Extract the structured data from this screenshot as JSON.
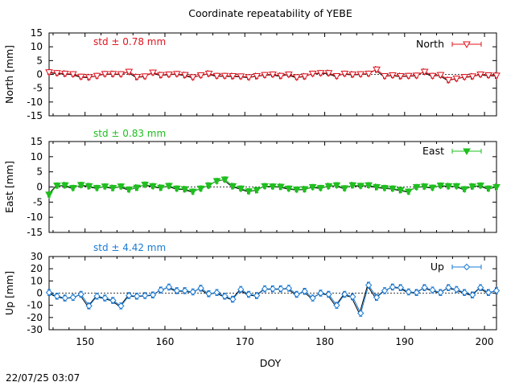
{
  "title": "Coordinate repeatability of YEBE",
  "timestamp": "22/07/25 03:07",
  "colors": {
    "north": "#e0141e",
    "east": "#1fbf1f",
    "up": "#1a7ad4",
    "black": "#000000"
  },
  "chart_data": [
    {
      "type": "line",
      "panel": "north",
      "ylabel": "North [mm]",
      "ylim": [
        -15,
        15
      ],
      "yticks": [
        "15",
        "10",
        "5",
        "0",
        "-5",
        "-10",
        "-15"
      ],
      "xlim": [
        145.5,
        201.5
      ],
      "xticks": [],
      "grid": false,
      "legend": "North",
      "legend_placement": "top-right",
      "std_label": "std ± 0.78 mm",
      "marker": "open-triangle-down",
      "series": [
        {
          "x": [
            145.5,
            146.5,
            147.5,
            148.5,
            149.5,
            150.5,
            151.5,
            152.5,
            153.5,
            154.5,
            155.5,
            156.5,
            157.5,
            158.5,
            159.5,
            160.5,
            161.5,
            162.5,
            163.5,
            164.5,
            165.5,
            166.5,
            167.5,
            168.5,
            169.5,
            170.5,
            171.5,
            172.5,
            173.5,
            174.5,
            175.5,
            176.5,
            177.5,
            178.5,
            179.5,
            180.5,
            181.5,
            182.5,
            183.5,
            184.5,
            185.5,
            186.5,
            187.5,
            188.5,
            189.5,
            190.5,
            191.5,
            192.5,
            193.5,
            194.5,
            195.5,
            196.5,
            197.5,
            198.5,
            199.5,
            200.5,
            201.5
          ],
          "y": [
            0.8,
            0.5,
            0.3,
            0.1,
            -0.8,
            -1.0,
            -0.5,
            0.2,
            0.2,
            0.1,
            1.0,
            -0.9,
            -0.7,
            0.7,
            -0.2,
            0.0,
            0.2,
            -0.2,
            -1.0,
            -0.3,
            0.3,
            -0.5,
            -0.5,
            -0.6,
            -0.7,
            -1.0,
            -0.6,
            -0.2,
            0.0,
            -0.5,
            0.0,
            -1.0,
            -0.7,
            0.3,
            0.5,
            0.5,
            -0.6,
            0.3,
            0.0,
            0.1,
            0.3,
            1.8,
            -0.6,
            -0.3,
            -0.6,
            -0.5,
            -0.4,
            1.0,
            -0.5,
            -0.2,
            -2.0,
            -1.5,
            -0.9,
            -0.7,
            0.0,
            -0.3,
            -0.4
          ]
        }
      ]
    },
    {
      "type": "line",
      "panel": "east",
      "ylabel": "East [mm]",
      "ylim": [
        -15,
        15
      ],
      "yticks": [
        "15",
        "10",
        "5",
        "0",
        "-5",
        "-10",
        "-15"
      ],
      "xlim": [
        145.5,
        201.5
      ],
      "xticks": [],
      "grid": false,
      "legend": "East",
      "legend_placement": "top-right",
      "std_label": "std ± 0.83 mm",
      "marker": "filled-triangle-down",
      "series": [
        {
          "x": [
            145.5,
            146.5,
            147.5,
            148.5,
            149.5,
            150.5,
            151.5,
            152.5,
            153.5,
            154.5,
            155.5,
            156.5,
            157.5,
            158.5,
            159.5,
            160.5,
            161.5,
            162.5,
            163.5,
            164.5,
            165.5,
            166.5,
            167.5,
            168.5,
            169.5,
            170.5,
            171.5,
            172.5,
            173.5,
            174.5,
            175.5,
            176.5,
            177.5,
            178.5,
            179.5,
            180.5,
            181.5,
            182.5,
            183.5,
            184.5,
            185.5,
            186.5,
            187.5,
            188.5,
            189.5,
            190.5,
            191.5,
            192.5,
            193.5,
            194.5,
            195.5,
            196.5,
            197.5,
            198.5,
            199.5,
            200.5,
            201.5
          ],
          "y": [
            -2.5,
            0.5,
            0.6,
            -0.3,
            0.7,
            0.3,
            -0.3,
            0.2,
            -0.3,
            0.2,
            -0.8,
            -0.2,
            0.8,
            0.3,
            -0.2,
            0.4,
            -0.5,
            -0.7,
            -1.5,
            -0.5,
            0.5,
            2.0,
            2.5,
            0.3,
            -0.5,
            -1.4,
            -1.0,
            0.3,
            0.2,
            0.1,
            -0.5,
            -0.8,
            -0.7,
            0.0,
            -0.3,
            0.3,
            0.6,
            -0.4,
            0.6,
            0.4,
            0.6,
            0.0,
            -0.3,
            -0.5,
            -1.0,
            -1.5,
            0.0,
            0.2,
            -0.2,
            0.5,
            0.3,
            0.3,
            -0.7,
            0.2,
            0.5,
            -0.5,
            0.0
          ]
        }
      ]
    },
    {
      "type": "line",
      "panel": "up",
      "ylabel": "Up [mm]",
      "xlabel": "DOY",
      "ylim": [
        -30,
        30
      ],
      "yticks": [
        "30",
        "20",
        "10",
        "0",
        "-10",
        "-20",
        "-30"
      ],
      "xlim": [
        145.5,
        201.5
      ],
      "xticks": [
        150,
        160,
        170,
        180,
        190,
        200
      ],
      "xtick_labels": [
        "150",
        "160",
        "170",
        "180",
        "190",
        "200"
      ],
      "grid": false,
      "legend": "Up",
      "legend_placement": "top-right",
      "std_label": "std ± 4.42 mm",
      "marker": "open-diamond",
      "series": [
        {
          "x": [
            145.5,
            146.5,
            147.5,
            148.5,
            149.5,
            150.5,
            151.5,
            152.5,
            153.5,
            154.5,
            155.5,
            156.5,
            157.5,
            158.5,
            159.5,
            160.5,
            161.5,
            162.5,
            163.5,
            164.5,
            165.5,
            166.5,
            167.5,
            168.5,
            169.5,
            170.5,
            171.5,
            172.5,
            173.5,
            174.5,
            175.5,
            176.5,
            177.5,
            178.5,
            179.5,
            180.5,
            181.5,
            182.5,
            183.5,
            184.5,
            185.5,
            186.5,
            187.5,
            188.5,
            189.5,
            190.5,
            191.5,
            192.5,
            193.5,
            194.5,
            195.5,
            196.5,
            197.5,
            198.5,
            199.5,
            200.5,
            201.5
          ],
          "y": [
            0.5,
            -2.5,
            -4.0,
            -3.5,
            -1.0,
            -10.5,
            -2.5,
            -4.0,
            -6.0,
            -10.5,
            -2.0,
            -2.5,
            -2.0,
            -1.5,
            2.5,
            5.0,
            2.0,
            2.0,
            1.0,
            4.0,
            -0.5,
            0.5,
            -2.5,
            -5.0,
            3.0,
            -1.0,
            -2.0,
            3.5,
            3.5,
            3.5,
            4.0,
            -1.0,
            1.5,
            -4.0,
            0.0,
            -1.0,
            -10.0,
            -1.0,
            -3.0,
            -16.5,
            6.5,
            -3.5,
            2.0,
            5.0,
            4.5,
            1.0,
            0.5,
            4.5,
            2.5,
            0.5,
            4.5,
            3.0,
            0.5,
            -1.5,
            4.5,
            0.5,
            2.0
          ]
        }
      ]
    }
  ]
}
